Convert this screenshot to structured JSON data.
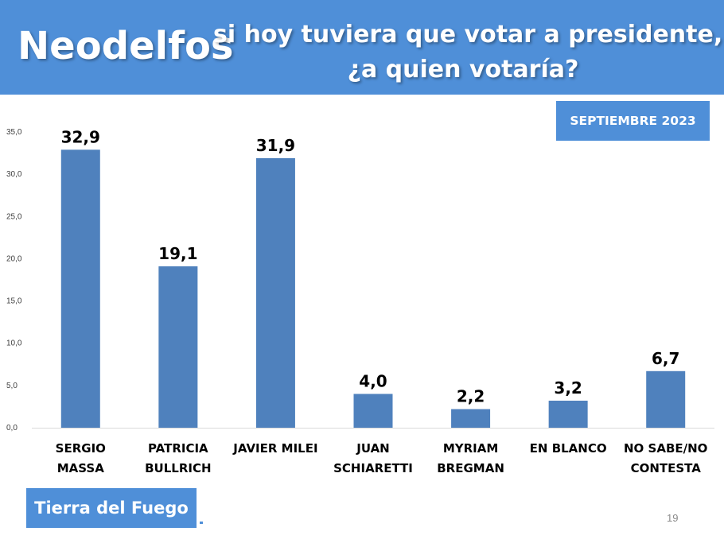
{
  "header": {
    "brand": "Neodelfos",
    "question_line1": "si hoy tuviera que votar a presidente,",
    "question_line2": "¿a quien votaría?"
  },
  "date_badge": "SEPTIEMBRE 2023",
  "region_badge": "Tierra del Fuego",
  "page_number": "19",
  "colors": {
    "header": "#4f8fd8",
    "bar": "#4f81bd"
  },
  "chart_data": {
    "type": "bar",
    "categories": [
      [
        "SERGIO",
        "MASSA"
      ],
      [
        "PATRICIA",
        "BULLRICH"
      ],
      [
        "JAVIER MILEI"
      ],
      [
        "JUAN",
        "SCHIARETTI"
      ],
      [
        "MYRIAM",
        "BREGMAN"
      ],
      [
        "EN BLANCO"
      ],
      [
        "NO SABE/NO",
        "CONTESTA"
      ]
    ],
    "values": [
      32.9,
      19.1,
      31.9,
      4.0,
      2.2,
      3.2,
      6.7
    ],
    "value_labels": [
      "32,9",
      "19,1",
      "31,9",
      "4,0",
      "2,2",
      "3,2",
      "6,7"
    ],
    "yticks": [
      "0,0",
      "5,0",
      "10,0",
      "15,0",
      "20,0",
      "25,0",
      "30,0",
      "35,0"
    ],
    "ylim": [
      0,
      35
    ],
    "grid": false,
    "title": "",
    "xlabel": "",
    "ylabel": ""
  }
}
